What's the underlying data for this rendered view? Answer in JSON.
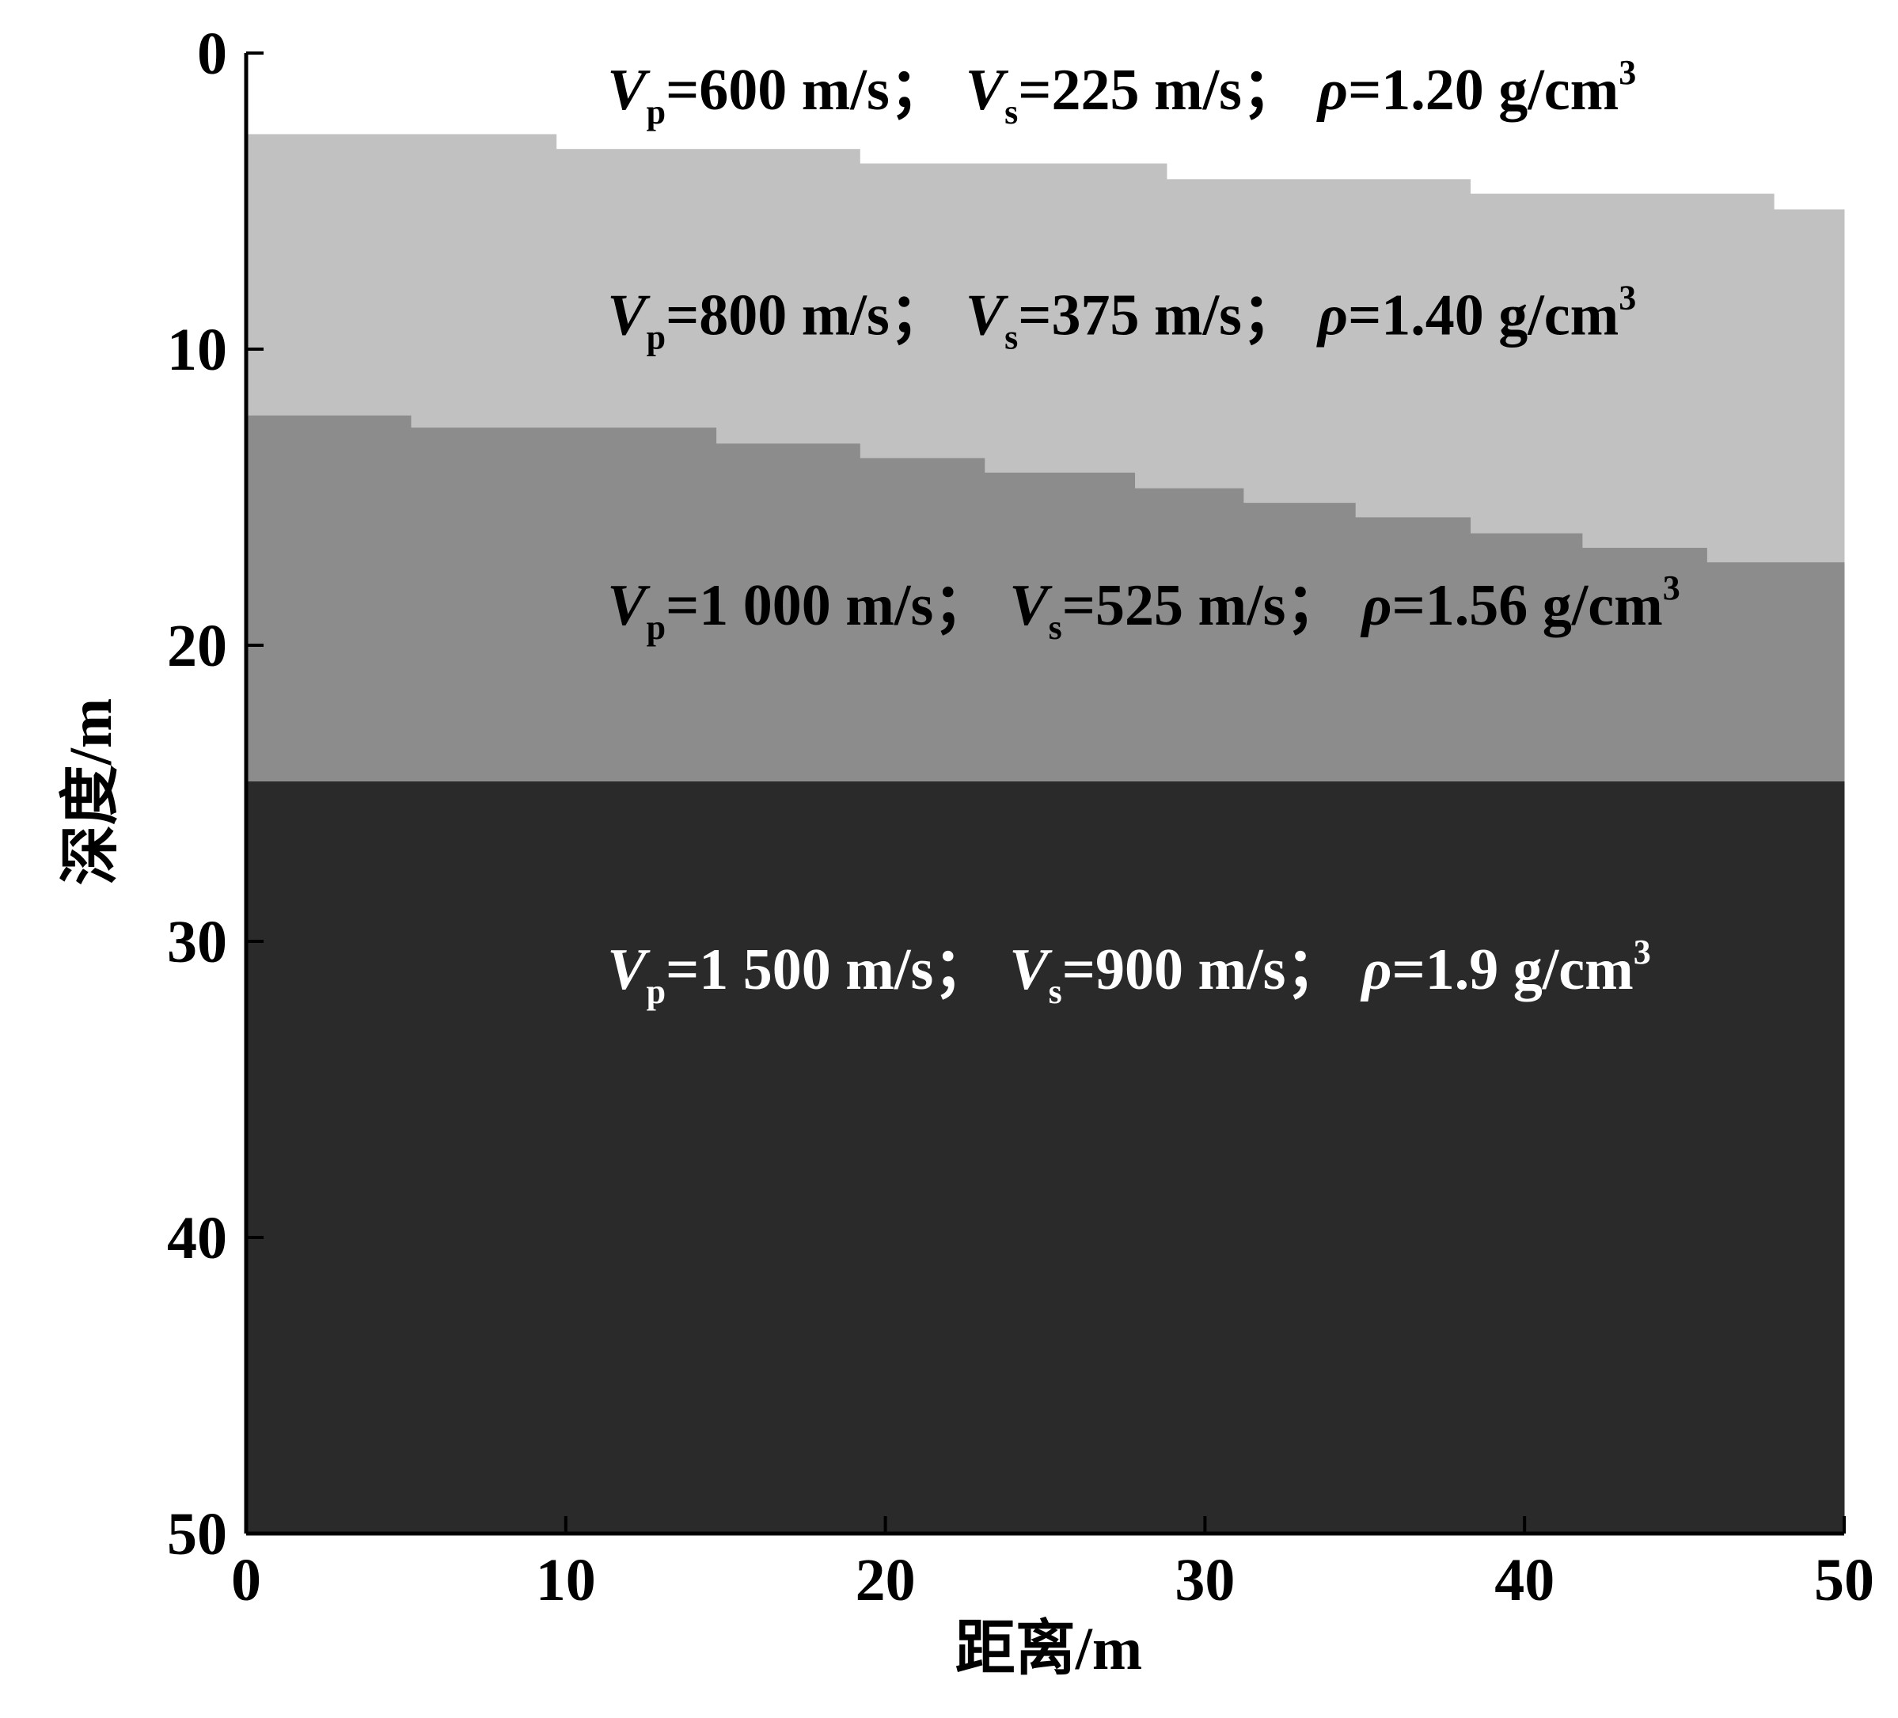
{
  "chart_data": {
    "type": "layer_model",
    "xlabel": "距离/m",
    "ylabel": "深度/m",
    "xlim": [
      0,
      50
    ],
    "ylim": [
      0,
      50
    ],
    "xticks": [
      0,
      10,
      20,
      30,
      40,
      50
    ],
    "yticks": [
      0,
      10,
      20,
      30,
      40,
      50
    ],
    "y_inverted": true,
    "interfaces": [
      {
        "x": [
          0,
          9.7,
          19.2,
          28.8,
          38.3,
          47.8,
          50
        ],
        "depth": [
          2.74,
          3.24,
          3.73,
          4.26,
          4.75,
          5.28
        ]
      },
      {
        "x": [
          0,
          5.15,
          14.7,
          19.2,
          23.1,
          27.8,
          31.2,
          34.7,
          38.3,
          41.8,
          45.7,
          50
        ],
        "depth": [
          12.24,
          12.65,
          13.19,
          13.68,
          14.17,
          14.7,
          15.19,
          15.68,
          16.22,
          16.71,
          17.2
        ]
      },
      {
        "x": [
          0,
          50
        ],
        "depth": [
          24.6
        ]
      }
    ],
    "layers": [
      {
        "color": "#ffffff",
        "label_color": "#000000",
        "label": [
          {
            "t": "V",
            "s": "italic"
          },
          {
            "t": "p",
            "s": "sub"
          },
          {
            "t": "=600 m/s；",
            "s": "normal"
          },
          {
            "t": "V",
            "s": "italic"
          },
          {
            "t": "s",
            "s": "sub"
          },
          {
            "t": "=225 m/s；",
            "s": "normal"
          },
          {
            "t": "ρ",
            "s": "italic"
          },
          {
            "t": "=1.20 g/cm",
            "s": "normal"
          },
          {
            "t": "3",
            "s": "sup"
          }
        ]
      },
      {
        "color": "#c1c1c1",
        "label_color": "#000000",
        "label": [
          {
            "t": "V",
            "s": "italic"
          },
          {
            "t": "p",
            "s": "sub"
          },
          {
            "t": "=800 m/s；",
            "s": "normal"
          },
          {
            "t": "V",
            "s": "italic"
          },
          {
            "t": "s",
            "s": "sub"
          },
          {
            "t": "=375 m/s；",
            "s": "normal"
          },
          {
            "t": "ρ",
            "s": "italic"
          },
          {
            "t": "=1.40 g/cm",
            "s": "normal"
          },
          {
            "t": "3",
            "s": "sup"
          }
        ]
      },
      {
        "color": "#8c8c8c",
        "label_color": "#000000",
        "label": [
          {
            "t": "V",
            "s": "italic"
          },
          {
            "t": "p",
            "s": "sub"
          },
          {
            "t": "=1 000 m/s；",
            "s": "normal"
          },
          {
            "t": "V",
            "s": "italic"
          },
          {
            "t": "s",
            "s": "sub"
          },
          {
            "t": "=525 m/s；",
            "s": "normal"
          },
          {
            "t": "ρ",
            "s": "italic"
          },
          {
            "t": "=1.56 g/cm",
            "s": "normal"
          },
          {
            "t": "3",
            "s": "sup"
          }
        ]
      },
      {
        "color": "#2a2a2a",
        "label_color": "#ffffff",
        "label": [
          {
            "t": "V",
            "s": "italic"
          },
          {
            "t": "p",
            "s": "sub"
          },
          {
            "t": "=1 500 m/s；",
            "s": "normal"
          },
          {
            "t": "V",
            "s": "italic"
          },
          {
            "t": "s",
            "s": "sub"
          },
          {
            "t": "=900 m/s；",
            "s": "normal"
          },
          {
            "t": "ρ",
            "s": "italic"
          },
          {
            "t": "=1.9 g/cm",
            "s": "normal"
          },
          {
            "t": "3",
            "s": "sup"
          }
        ]
      }
    ]
  }
}
